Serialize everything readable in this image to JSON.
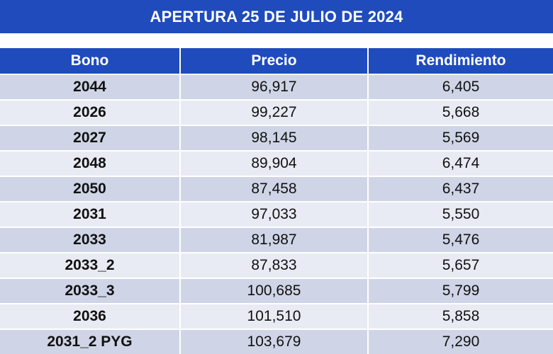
{
  "title": "APERTURA 25 DE JULIO DE 2024",
  "columns": [
    "Bono",
    "Precio",
    "Rendimiento"
  ],
  "rows": [
    {
      "bono": "2044",
      "precio": "96,917",
      "rendimiento": "6,405"
    },
    {
      "bono": "2026",
      "precio": "99,227",
      "rendimiento": "5,668"
    },
    {
      "bono": "2027",
      "precio": "98,145",
      "rendimiento": "5,569"
    },
    {
      "bono": "2048",
      "precio": "89,904",
      "rendimiento": "6,474"
    },
    {
      "bono": "2050",
      "precio": "87,458",
      "rendimiento": "6,437"
    },
    {
      "bono": "2031",
      "precio": "97,033",
      "rendimiento": "5,550"
    },
    {
      "bono": "2033",
      "precio": "81,987",
      "rendimiento": "5,476"
    },
    {
      "bono": "2033_2",
      "precio": "87,833",
      "rendimiento": "5,657"
    },
    {
      "bono": "2033_3",
      "precio": "100,685",
      "rendimiento": "5,799"
    },
    {
      "bono": "2036",
      "precio": "101,510",
      "rendimiento": "5,858"
    },
    {
      "bono": "2031_2  PYG",
      "precio": "103,679",
      "rendimiento": "7,290"
    }
  ],
  "colors": {
    "header_blue": "#1f4bbd",
    "row_dark": "#cfd5e6",
    "row_light": "#e8ebf3"
  }
}
